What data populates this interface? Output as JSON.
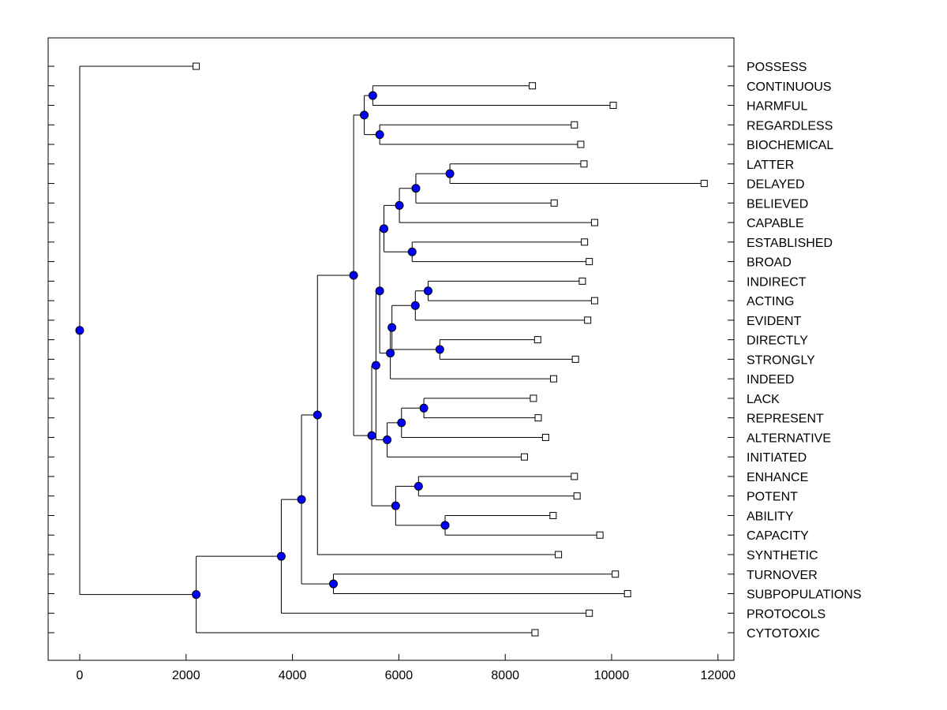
{
  "chart_data": {
    "type": "dendrogram",
    "title": "",
    "xlabel": "",
    "ylabel": "",
    "xlim": [
      -600,
      12400
    ],
    "x_ticks": [
      0,
      2000,
      4000,
      6000,
      8000,
      10000,
      12000
    ],
    "x_tick_labels": [
      "0",
      "2000",
      "4000",
      "6000",
      "8000",
      "10000",
      "12000"
    ],
    "grid": false,
    "node_color": "#0000ff",
    "leaves": [
      {
        "label": "POSSESS",
        "x": 2190
      },
      {
        "label": "CONTINUOUS",
        "x": 8510
      },
      {
        "label": "HARMFUL",
        "x": 10030
      },
      {
        "label": "REGARDLESS",
        "x": 9300
      },
      {
        "label": "BIOCHEMICAL",
        "x": 9420
      },
      {
        "label": "LATTER",
        "x": 9480
      },
      {
        "label": "DELAYED",
        "x": 11740
      },
      {
        "label": "BELIEVED",
        "x": 8920
      },
      {
        "label": "CAPABLE",
        "x": 9680
      },
      {
        "label": "ESTABLISHED",
        "x": 9490
      },
      {
        "label": "BROAD",
        "x": 9580
      },
      {
        "label": "INDIRECT",
        "x": 9450
      },
      {
        "label": "ACTING",
        "x": 9680
      },
      {
        "label": "EVIDENT",
        "x": 9550
      },
      {
        "label": "DIRECTLY",
        "x": 8610
      },
      {
        "label": "STRONGLY",
        "x": 9320
      },
      {
        "label": "INDEED",
        "x": 8910
      },
      {
        "label": "LACK",
        "x": 8530
      },
      {
        "label": "REPRESENT",
        "x": 8620
      },
      {
        "label": "ALTERNATIVE",
        "x": 8760
      },
      {
        "label": "INITIATED",
        "x": 8360
      },
      {
        "label": "ENHANCE",
        "x": 9300
      },
      {
        "label": "POTENT",
        "x": 9350
      },
      {
        "label": "ABILITY",
        "x": 8900
      },
      {
        "label": "CAPACITY",
        "x": 9780
      },
      {
        "label": "SYNTHETIC",
        "x": 9000
      },
      {
        "label": "TURNOVER",
        "x": 10070
      },
      {
        "label": "SUBPOPULATIONS",
        "x": 10300
      },
      {
        "label": "PROTOCOLS",
        "x": 9580
      },
      {
        "label": "CYTOTOXIC",
        "x": 8560
      }
    ],
    "merges": [
      {
        "id": "n_cont_harm",
        "x": 5510,
        "children": [
          "CONTINUOUS",
          "HARMFUL"
        ]
      },
      {
        "id": "n_reg_bio",
        "x": 5640,
        "children": [
          "REGARDLESS",
          "BIOCHEMICAL"
        ]
      },
      {
        "id": "n_top4",
        "x": 5350,
        "children": [
          "n_cont_harm",
          "n_reg_bio"
        ]
      },
      {
        "id": "n_lat_del",
        "x": 6960,
        "children": [
          "LATTER",
          "DELAYED"
        ]
      },
      {
        "id": "n_ld_bel",
        "x": 6320,
        "children": [
          "n_lat_del",
          "BELIEVED"
        ]
      },
      {
        "id": "n_ldb_cap",
        "x": 6010,
        "children": [
          "n_ld_bel",
          "CAPABLE"
        ]
      },
      {
        "id": "n_est_broad",
        "x": 6250,
        "children": [
          "ESTABLISHED",
          "BROAD"
        ]
      },
      {
        "id": "n_g1",
        "x": 5720,
        "children": [
          "n_ldb_cap",
          "n_est_broad"
        ]
      },
      {
        "id": "n_ind_act",
        "x": 6550,
        "children": [
          "INDIRECT",
          "ACTING"
        ]
      },
      {
        "id": "n_ia_evi",
        "x": 6310,
        "children": [
          "n_ind_act",
          "EVIDENT"
        ]
      },
      {
        "id": "n_dir_str",
        "x": 6770,
        "children": [
          "DIRECTLY",
          "STRONGLY"
        ]
      },
      {
        "id": "n_iae_ds",
        "x": 5870,
        "children": [
          "n_ia_evi",
          "n_dir_str"
        ]
      },
      {
        "id": "n_g2",
        "x": 5840,
        "children": [
          "n_iae_ds",
          "INDEED"
        ]
      },
      {
        "id": "n_g12",
        "x": 5640,
        "children": [
          "n_g1",
          "n_g2"
        ]
      },
      {
        "id": "n_lack_rep",
        "x": 6470,
        "children": [
          "LACK",
          "REPRESENT"
        ]
      },
      {
        "id": "n_lr_alt",
        "x": 6050,
        "children": [
          "n_lack_rep",
          "ALTERNATIVE"
        ]
      },
      {
        "id": "n_g3",
        "x": 5780,
        "children": [
          "n_lr_alt",
          "INITIATED"
        ]
      },
      {
        "id": "n_g123",
        "x": 5570,
        "children": [
          "n_g12",
          "n_g3"
        ]
      },
      {
        "id": "n_enh_pot",
        "x": 6370,
        "children": [
          "ENHANCE",
          "POTENT"
        ]
      },
      {
        "id": "n_abi_cap",
        "x": 6870,
        "children": [
          "ABILITY",
          "CAPACITY"
        ]
      },
      {
        "id": "n_g4",
        "x": 5940,
        "children": [
          "n_enh_pot",
          "n_abi_cap"
        ]
      },
      {
        "id": "n_lower",
        "x": 5490,
        "children": [
          "n_g123",
          "n_g4"
        ]
      },
      {
        "id": "n_mid",
        "x": 5150,
        "children": [
          "n_top4",
          "n_lower"
        ]
      },
      {
        "id": "n_mid_syn",
        "x": 4470,
        "children": [
          "n_mid",
          "SYNTHETIC"
        ]
      },
      {
        "id": "n_turn_sub",
        "x": 4770,
        "children": [
          "TURNOVER",
          "SUBPOPULATIONS"
        ]
      },
      {
        "id": "n_big",
        "x": 4170,
        "children": [
          "n_mid_syn",
          "n_turn_sub"
        ]
      },
      {
        "id": "n_big_prot",
        "x": 3790,
        "children": [
          "n_big",
          "PROTOCOLS"
        ]
      },
      {
        "id": "n_lowclust",
        "x": 2190,
        "children": [
          "n_big_prot",
          "CYTOTOXIC"
        ]
      },
      {
        "id": "n_root",
        "x": 0,
        "children": [
          "POSSESS",
          "n_lowclust"
        ]
      }
    ]
  }
}
